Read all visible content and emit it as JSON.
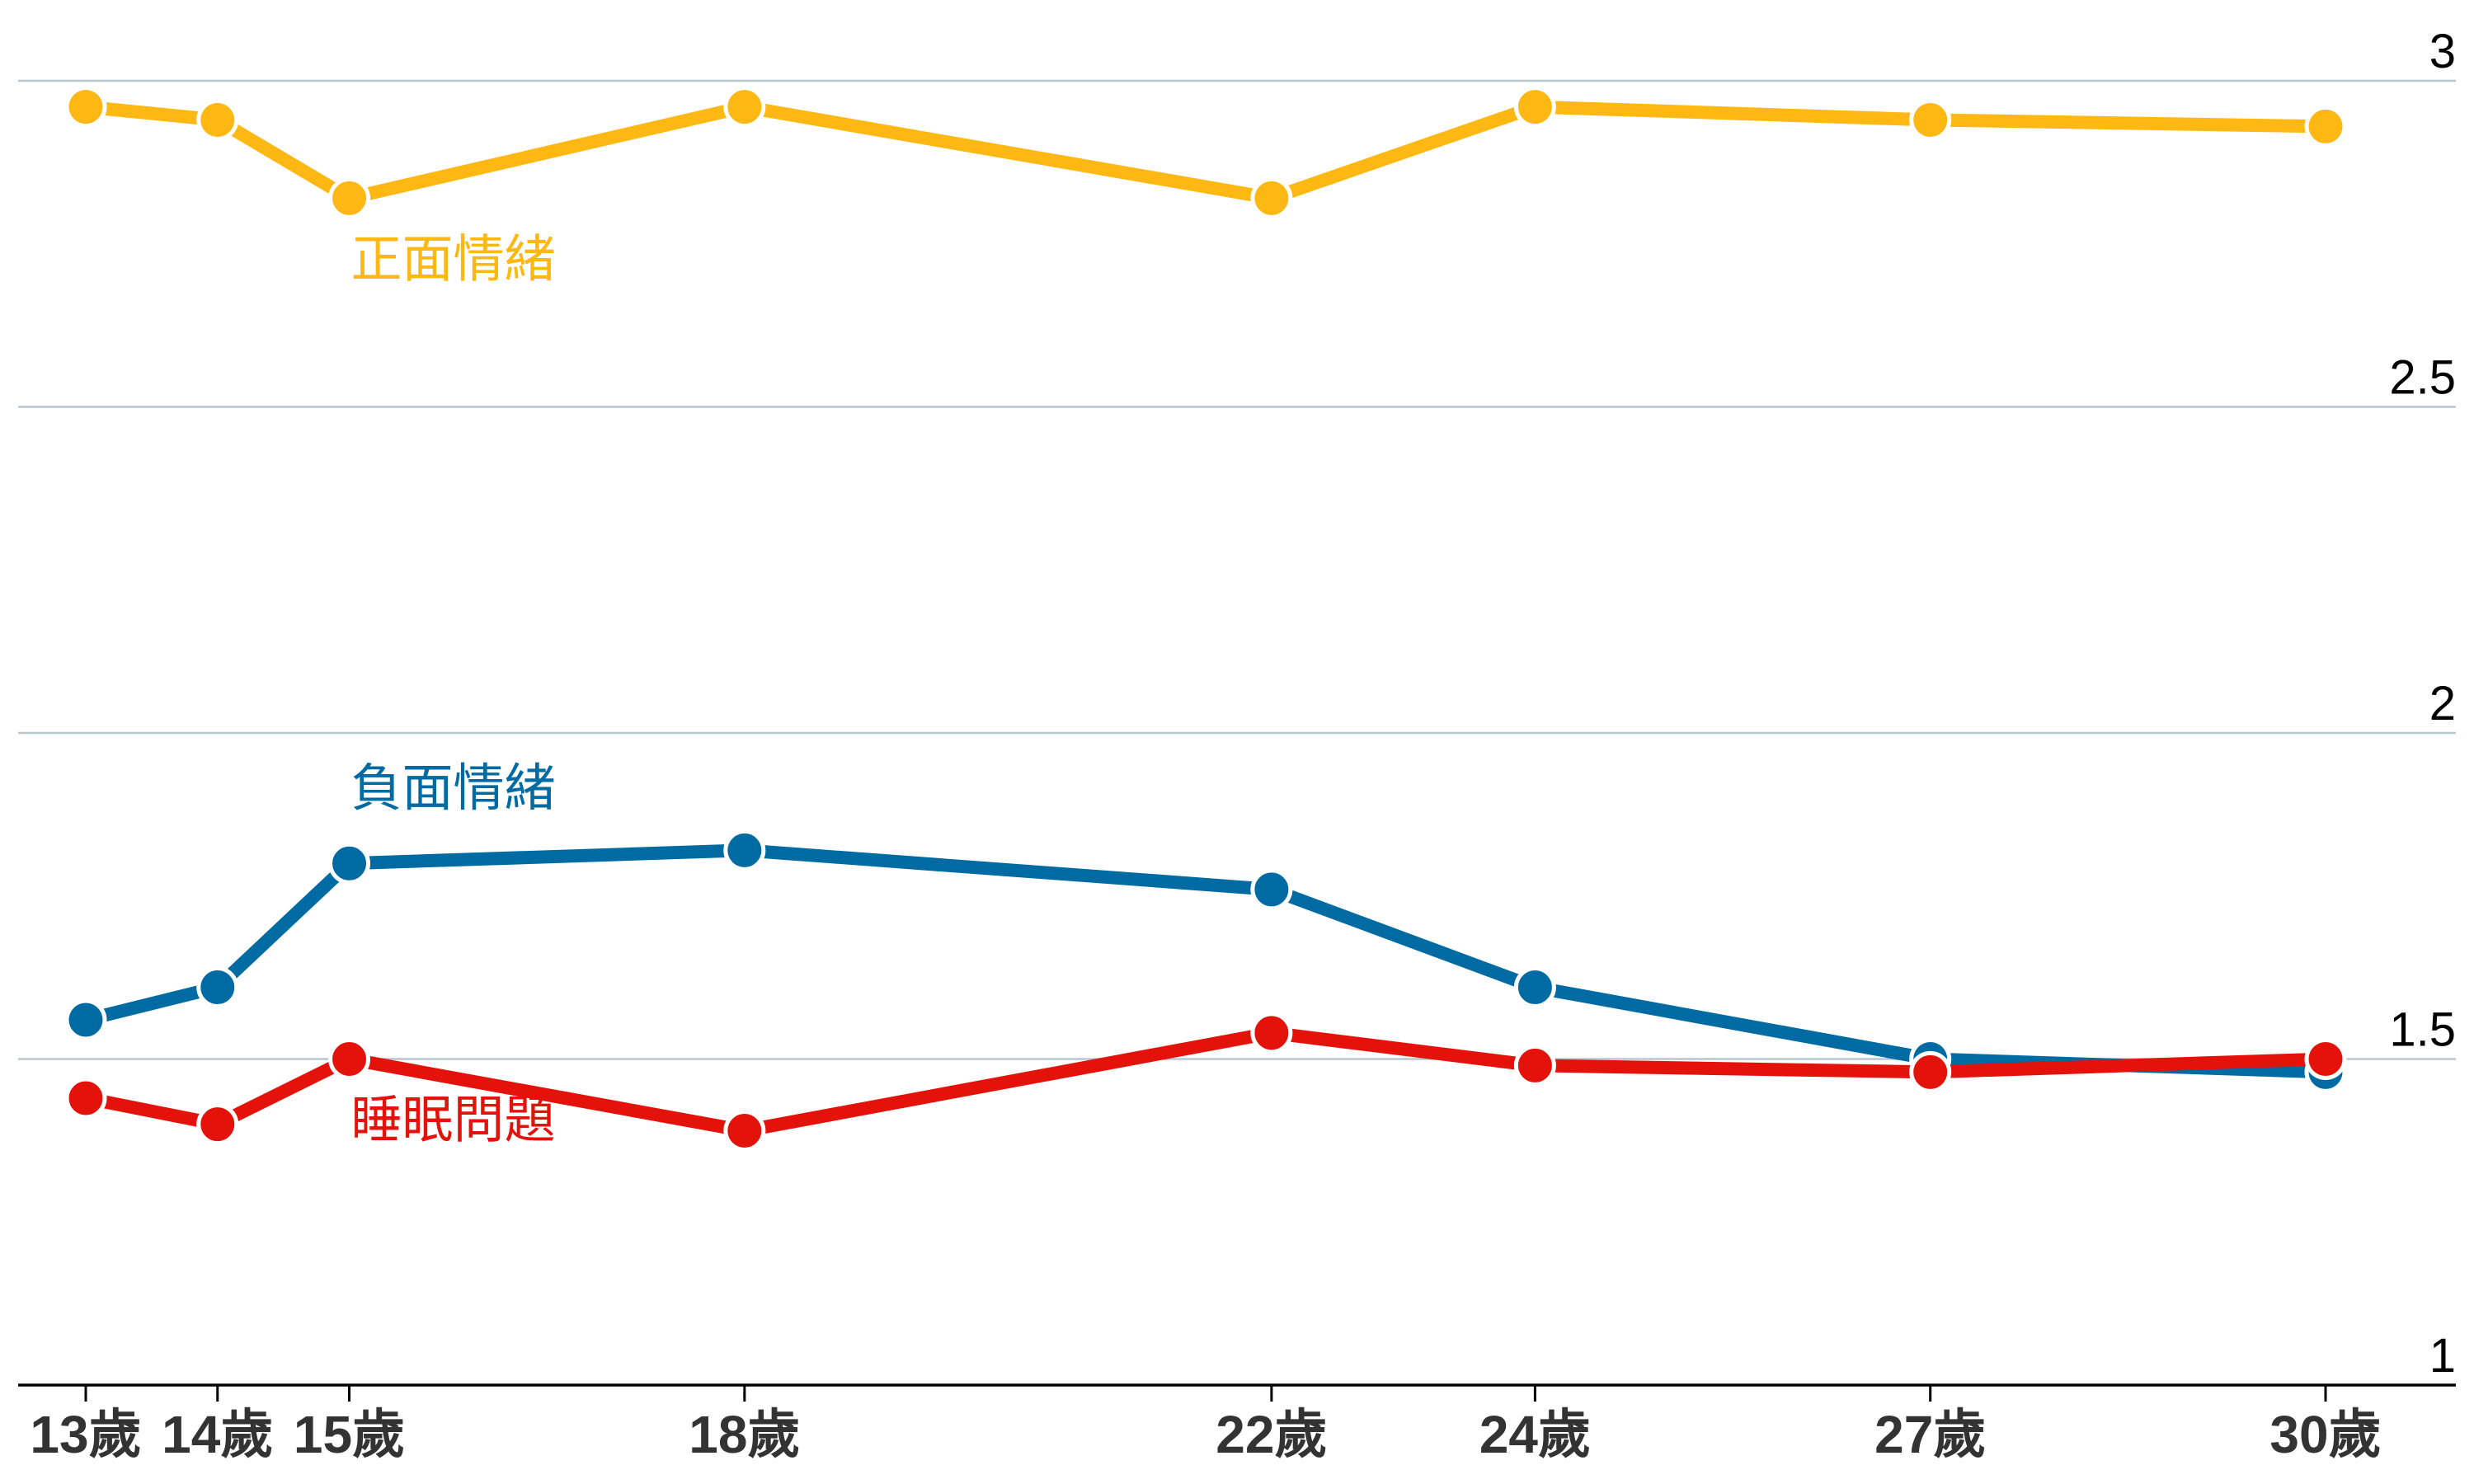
{
  "chart_data": {
    "type": "line",
    "x_values": [
      13,
      14,
      15,
      18,
      22,
      24,
      27,
      30
    ],
    "categories": [
      "13歲",
      "14歲",
      "15歲",
      "18歲",
      "22歲",
      "24歲",
      "27歲",
      "30歲"
    ],
    "ylim": [
      1,
      3
    ],
    "yticks": [
      {
        "value": 3,
        "label": "3"
      },
      {
        "value": 2.5,
        "label": "2.5"
      },
      {
        "value": 2,
        "label": "2"
      },
      {
        "value": 1.5,
        "label": "1.5"
      },
      {
        "value": 1,
        "label": "1"
      }
    ],
    "grid": true,
    "series": [
      {
        "name": "正面情緒",
        "color": "#FDB813",
        "values": [
          2.96,
          2.94,
          2.82,
          2.96,
          2.82,
          2.96,
          2.94,
          2.93
        ],
        "label_anchor_index": 2,
        "label_below": true
      },
      {
        "name": "負面情緒",
        "color": "#006BA2",
        "values": [
          1.56,
          1.61,
          1.8,
          1.82,
          1.76,
          1.61,
          1.5,
          1.48
        ],
        "label_anchor_index": 2,
        "label_below": false
      },
      {
        "name": "睡眠問題",
        "color": "#E3120B",
        "values": [
          1.44,
          1.4,
          1.5,
          1.39,
          1.54,
          1.49,
          1.48,
          1.5
        ],
        "label_anchor_index": 2,
        "label_below": true
      }
    ]
  }
}
